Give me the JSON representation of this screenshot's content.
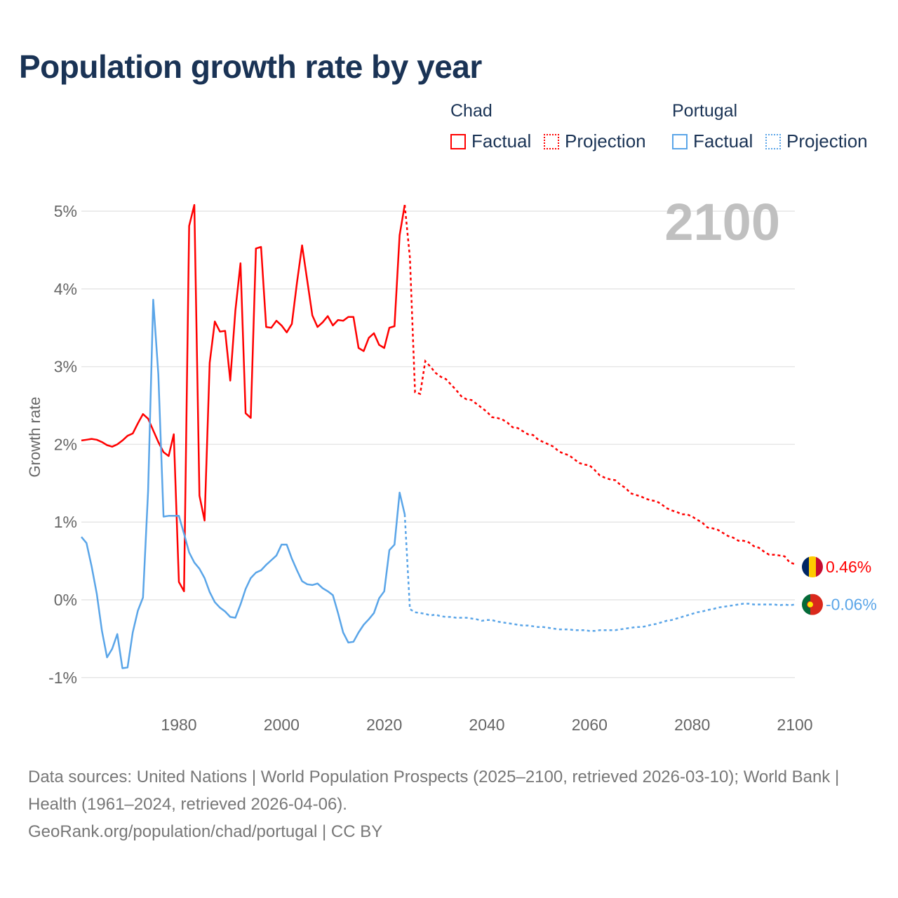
{
  "chart_data": {
    "type": "line",
    "title": "Population growth rate by year",
    "ylabel": "Growth rate",
    "xlabel": "",
    "xlim": [
      1961,
      2100
    ],
    "ylim": [
      -1.4,
      5.4
    ],
    "xticks": [
      1980,
      2000,
      2020,
      2040,
      2060,
      2080,
      2100
    ],
    "xtick_labels": [
      "1980",
      "2000",
      "2020",
      "2040",
      "2060",
      "2080",
      "2100"
    ],
    "yticks": [
      -1,
      0,
      1,
      2,
      3,
      4,
      5
    ],
    "ytick_labels": [
      "-1%",
      "0%",
      "1%",
      "2%",
      "3%",
      "4%",
      "5%"
    ],
    "grid": true,
    "year_overlay": "2100",
    "legend": {
      "placement": "top-right",
      "groups": [
        {
          "name": "Chad",
          "factual": "Factual",
          "projection": "Projection"
        },
        {
          "name": "Portugal",
          "factual": "Factual",
          "projection": "Projection"
        }
      ]
    },
    "series": [
      {
        "name": "Chad",
        "color": "#ff0000",
        "end_label": "0.46%",
        "factual_start": 1961,
        "factual": [
          2.05,
          2.06,
          2.07,
          2.06,
          2.03,
          1.99,
          1.97,
          2.0,
          2.05,
          2.11,
          2.14,
          2.27,
          2.39,
          2.33,
          2.18,
          2.03,
          1.9,
          1.85,
          2.13,
          0.23,
          0.11,
          4.81,
          5.08,
          1.34,
          1.02,
          3.05,
          3.58,
          3.45,
          3.46,
          2.82,
          3.72,
          4.33,
          2.4,
          2.34,
          4.52,
          4.54,
          3.51,
          3.5,
          3.59,
          3.53,
          3.44,
          3.55,
          4.08,
          4.56,
          4.11,
          3.66,
          3.51,
          3.57,
          3.65,
          3.53,
          3.6,
          3.59,
          3.64,
          3.64,
          3.24,
          3.2,
          3.37,
          3.43,
          3.28,
          3.24,
          3.5,
          3.52,
          4.69,
          5.08
        ],
        "projection_start": 2024,
        "projection": [
          5.08,
          4.4,
          2.67,
          2.65,
          3.07,
          3.0,
          2.92,
          2.87,
          2.84,
          2.77,
          2.7,
          2.62,
          2.58,
          2.57,
          2.52,
          2.47,
          2.42,
          2.35,
          2.34,
          2.32,
          2.28,
          2.22,
          2.21,
          2.17,
          2.13,
          2.12,
          2.06,
          2.03,
          2.0,
          1.97,
          1.91,
          1.88,
          1.86,
          1.81,
          1.76,
          1.74,
          1.73,
          1.67,
          1.6,
          1.57,
          1.55,
          1.54,
          1.48,
          1.44,
          1.37,
          1.35,
          1.33,
          1.3,
          1.28,
          1.27,
          1.23,
          1.18,
          1.15,
          1.13,
          1.1,
          1.1,
          1.07,
          1.03,
          0.99,
          0.93,
          0.92,
          0.9,
          0.86,
          0.82,
          0.8,
          0.76,
          0.76,
          0.74,
          0.69,
          0.67,
          0.62,
          0.58,
          0.58,
          0.57,
          0.56,
          0.48,
          0.46
        ]
      },
      {
        "name": "Portugal",
        "color": "#5aa5e8",
        "end_label": "-0.06%",
        "factual_start": 1961,
        "factual": [
          0.81,
          0.73,
          0.43,
          0.08,
          -0.4,
          -0.74,
          -0.63,
          -0.44,
          -0.88,
          -0.87,
          -0.42,
          -0.14,
          0.03,
          1.4,
          3.86,
          2.9,
          1.07,
          1.08,
          1.08,
          1.08,
          0.85,
          0.61,
          0.48,
          0.4,
          0.28,
          0.1,
          -0.03,
          -0.1,
          -0.15,
          -0.22,
          -0.23,
          -0.06,
          0.14,
          0.28,
          0.35,
          0.38,
          0.45,
          0.51,
          0.57,
          0.71,
          0.71,
          0.53,
          0.38,
          0.24,
          0.2,
          0.19,
          0.21,
          0.15,
          0.11,
          0.06,
          -0.17,
          -0.42,
          -0.55,
          -0.54,
          -0.42,
          -0.32,
          -0.25,
          -0.17,
          0.02,
          0.11,
          0.64,
          0.71,
          1.38,
          1.1
        ],
        "projection_start": 2024,
        "projection": [
          1.1,
          -0.12,
          -0.16,
          -0.17,
          -0.18,
          -0.2,
          -0.19,
          -0.21,
          -0.22,
          -0.22,
          -0.23,
          -0.23,
          -0.23,
          -0.24,
          -0.25,
          -0.27,
          -0.26,
          -0.26,
          -0.28,
          -0.29,
          -0.3,
          -0.31,
          -0.32,
          -0.33,
          -0.33,
          -0.34,
          -0.35,
          -0.35,
          -0.36,
          -0.37,
          -0.38,
          -0.38,
          -0.38,
          -0.39,
          -0.39,
          -0.39,
          -0.4,
          -0.4,
          -0.39,
          -0.39,
          -0.39,
          -0.39,
          -0.38,
          -0.37,
          -0.36,
          -0.35,
          -0.35,
          -0.34,
          -0.32,
          -0.31,
          -0.29,
          -0.27,
          -0.26,
          -0.24,
          -0.22,
          -0.2,
          -0.18,
          -0.16,
          -0.15,
          -0.13,
          -0.12,
          -0.1,
          -0.09,
          -0.08,
          -0.07,
          -0.06,
          -0.05,
          -0.05,
          -0.06,
          -0.06,
          -0.06,
          -0.06,
          -0.06,
          -0.07,
          -0.06,
          -0.07,
          -0.06
        ]
      }
    ]
  },
  "sources": {
    "line1": "Data sources: United Nations | World Population Prospects (2025–2100, retrieved 2026-03-10); World Bank | Health (1961–2024, retrieved 2026-04-06).",
    "line2": "GeoRank.org/population/chad/portugal | CC BY"
  }
}
